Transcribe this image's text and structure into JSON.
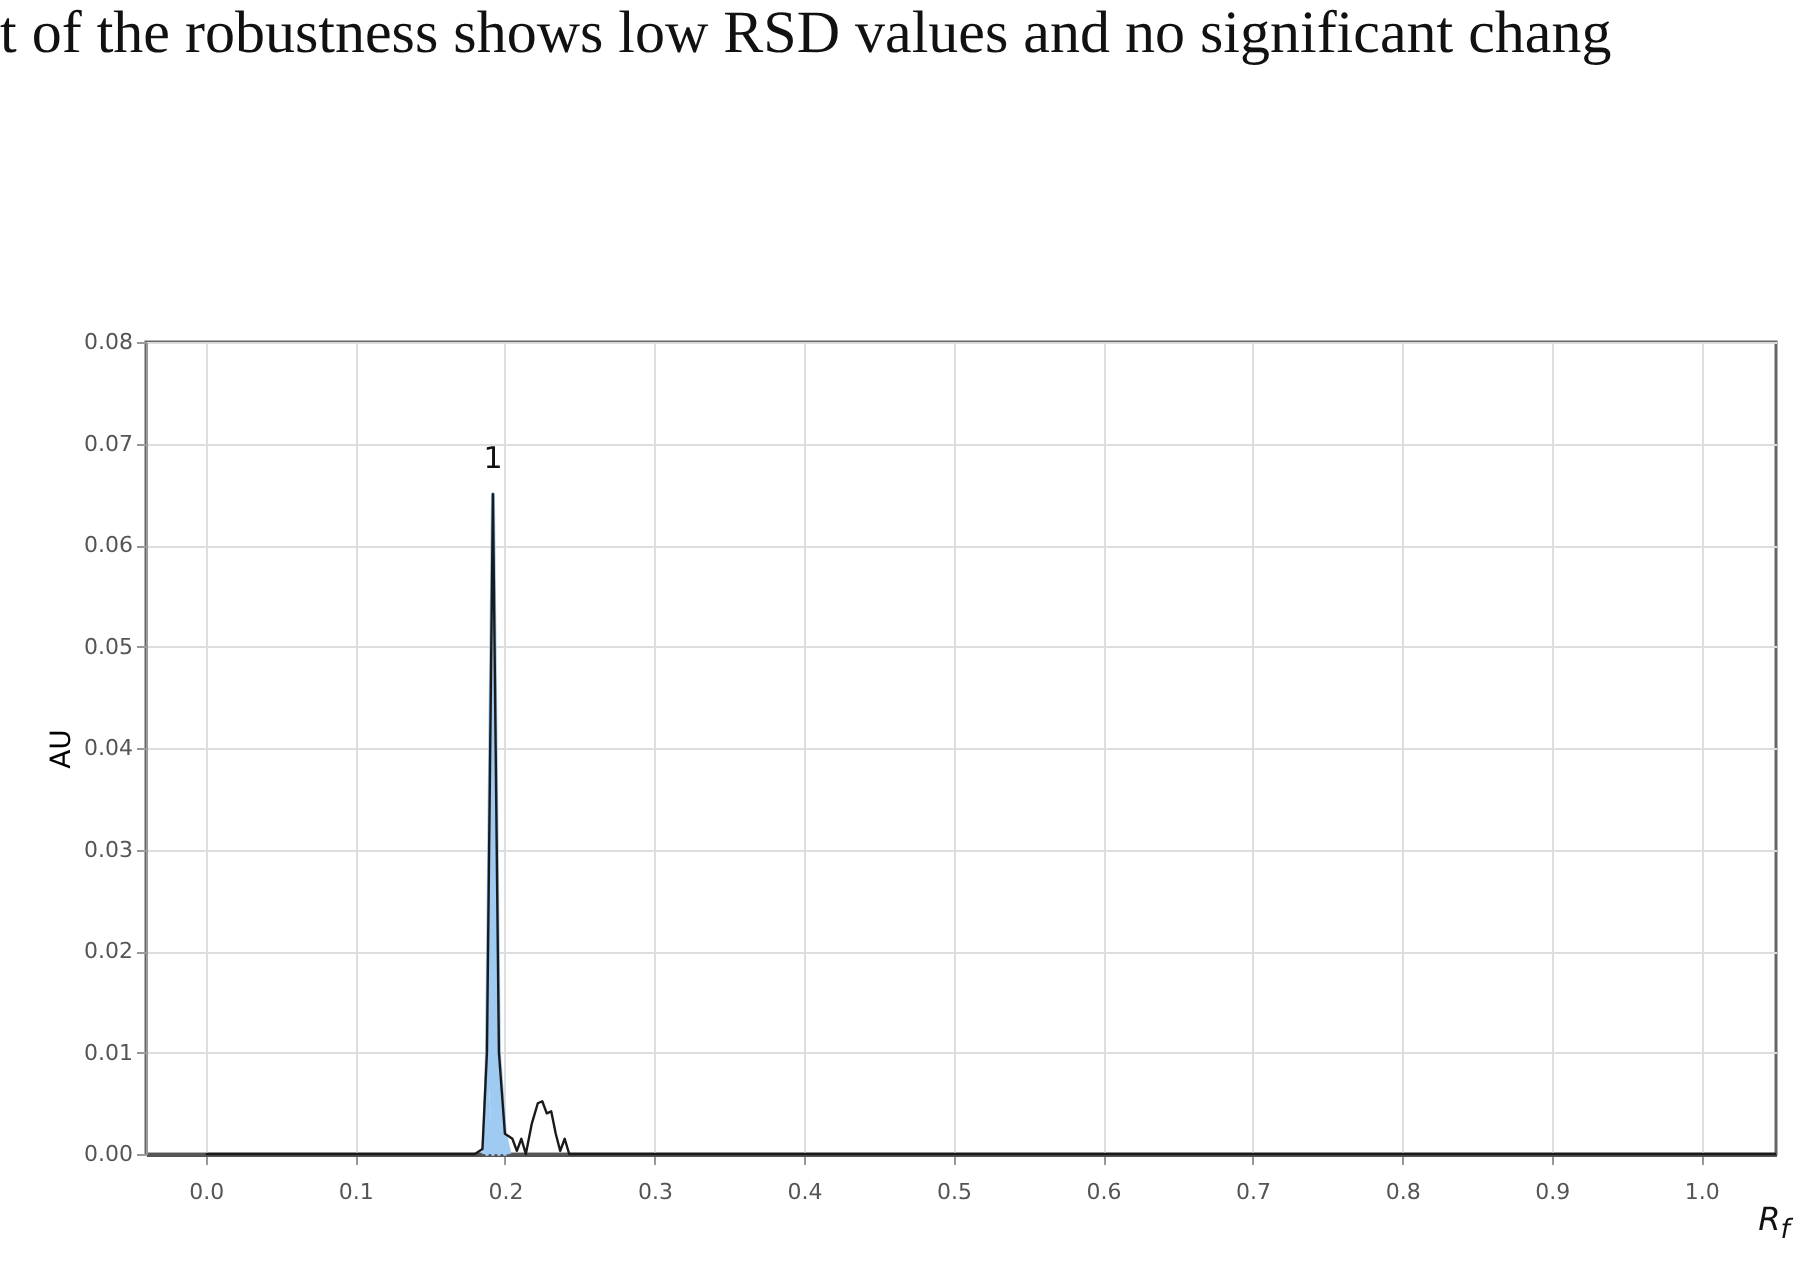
{
  "chart_data": {
    "type": "line",
    "xlabel": "R$_{f}$",
    "ylabel": "AU",
    "xlim": [
      -0.04,
      1.05
    ],
    "ylim": [
      0,
      0.08
    ],
    "xticks": [
      {
        "value": 0,
        "label": "0.0"
      },
      0.1,
      0.2,
      0.3,
      0.4,
      0.5,
      0.6,
      0.7,
      0.8,
      0.9,
      {
        "value": 1,
        "label": "1.0"
      }
    ],
    "yticks": [
      {
        "value": 0,
        "label": "0.00"
      },
      0.01,
      0.02,
      0.03,
      0.04,
      0.05,
      0.06,
      0.07,
      0.08
    ],
    "grid": true,
    "marker": "none",
    "line_style": "solid",
    "series": [
      {
        "type": "area",
        "color": "#9fcaf2",
        "x": [
          0.186,
          0.188,
          0.192,
          0.196,
          0.2,
          0.203
        ],
        "values": [
          0,
          0.01,
          0.065,
          0.01,
          0.002,
          0
        ]
      },
      {
        "color": "#1a1a1a",
        "x": [
          0,
          0.18,
          0.185,
          0.188,
          0.192,
          0.196,
          0.2,
          0.205,
          0.208,
          0.211,
          0.214,
          0.218,
          0.222,
          0.225,
          0.228,
          0.231,
          0.234,
          0.237,
          0.24,
          0.243,
          1.05
        ],
        "values": [
          0,
          0,
          0.0005,
          0.01,
          0.065,
          0.01,
          0.002,
          0.0015,
          0.0003,
          0.0015,
          0,
          0.003,
          0.005,
          0.0052,
          0.004,
          0.0042,
          0.002,
          0.0003,
          0.0015,
          0,
          0
        ]
      }
    ],
    "annotations": [
      "t of the robustness shows low RSD values and no significant chang",
      {
        "text": "1",
        "x": 0.192,
        "y": 0.065
      }
    ]
  }
}
